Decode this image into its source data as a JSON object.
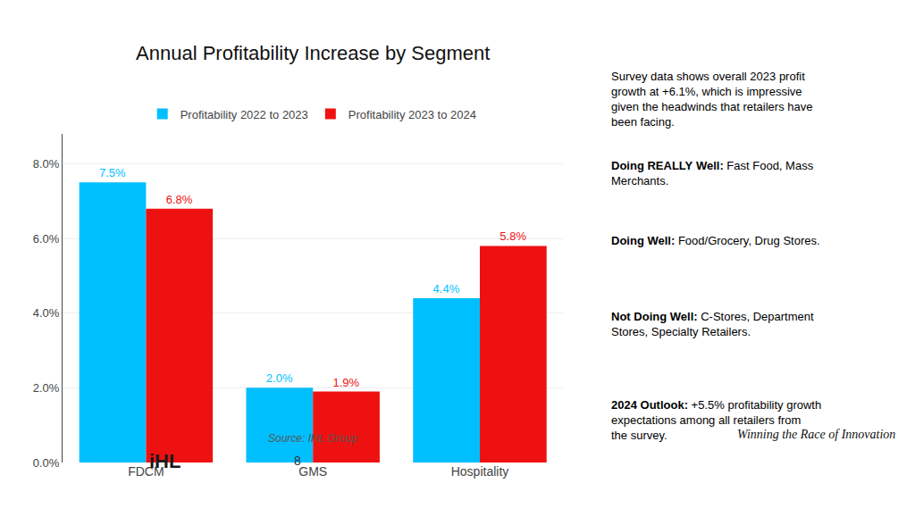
{
  "chart_data": {
    "type": "bar",
    "title": "Annual Profitability Increase by Segment",
    "subtitle": "Source: IHL Group",
    "categories": [
      "FDCM",
      "GMS",
      "Hospitality"
    ],
    "series": [
      {
        "name": "Profitability 2022 to 2023",
        "color": "#00BFFF",
        "values": [
          7.5,
          2.0,
          4.4
        ],
        "value_labels": [
          "7.5%",
          "2.0%",
          "4.4%"
        ]
      },
      {
        "name": "Profitability 2023 to 2024",
        "color": "#EE1111",
        "values": [
          6.8,
          1.9,
          5.8
        ],
        "value_labels": [
          "6.8%",
          "1.9%",
          "5.8%"
        ]
      }
    ],
    "ylim": [
      0,
      8.8
    ],
    "yticks": [
      {
        "value": 0.0,
        "label": "0.0%"
      },
      {
        "value": 2.0,
        "label": "2.0%"
      },
      {
        "value": 4.0,
        "label": "4.0%"
      },
      {
        "value": 6.0,
        "label": "6.0%"
      },
      {
        "value": 8.0,
        "label": "8.0%"
      }
    ],
    "grid": true,
    "legend": "top",
    "data_labels": true,
    "annotations": [
      "Winning the Race of Innovation",
      "Survey data shows overall 2023 profit growth at +6.1%, which is impressive given the headwinds that retailers have been facing.",
      "Doing REALLY Well: Fast Food, Mass Merchants.",
      "Doing Well: Food/Grocery, Drug Stores.",
      "Not Doing Well: C-Stores, Department Stores, Specialty Retailers.",
      "2024 Outlook: +5.5% profitability growth expectations among all retailers from the survey.",
      "iHL",
      "8"
    ]
  }
}
